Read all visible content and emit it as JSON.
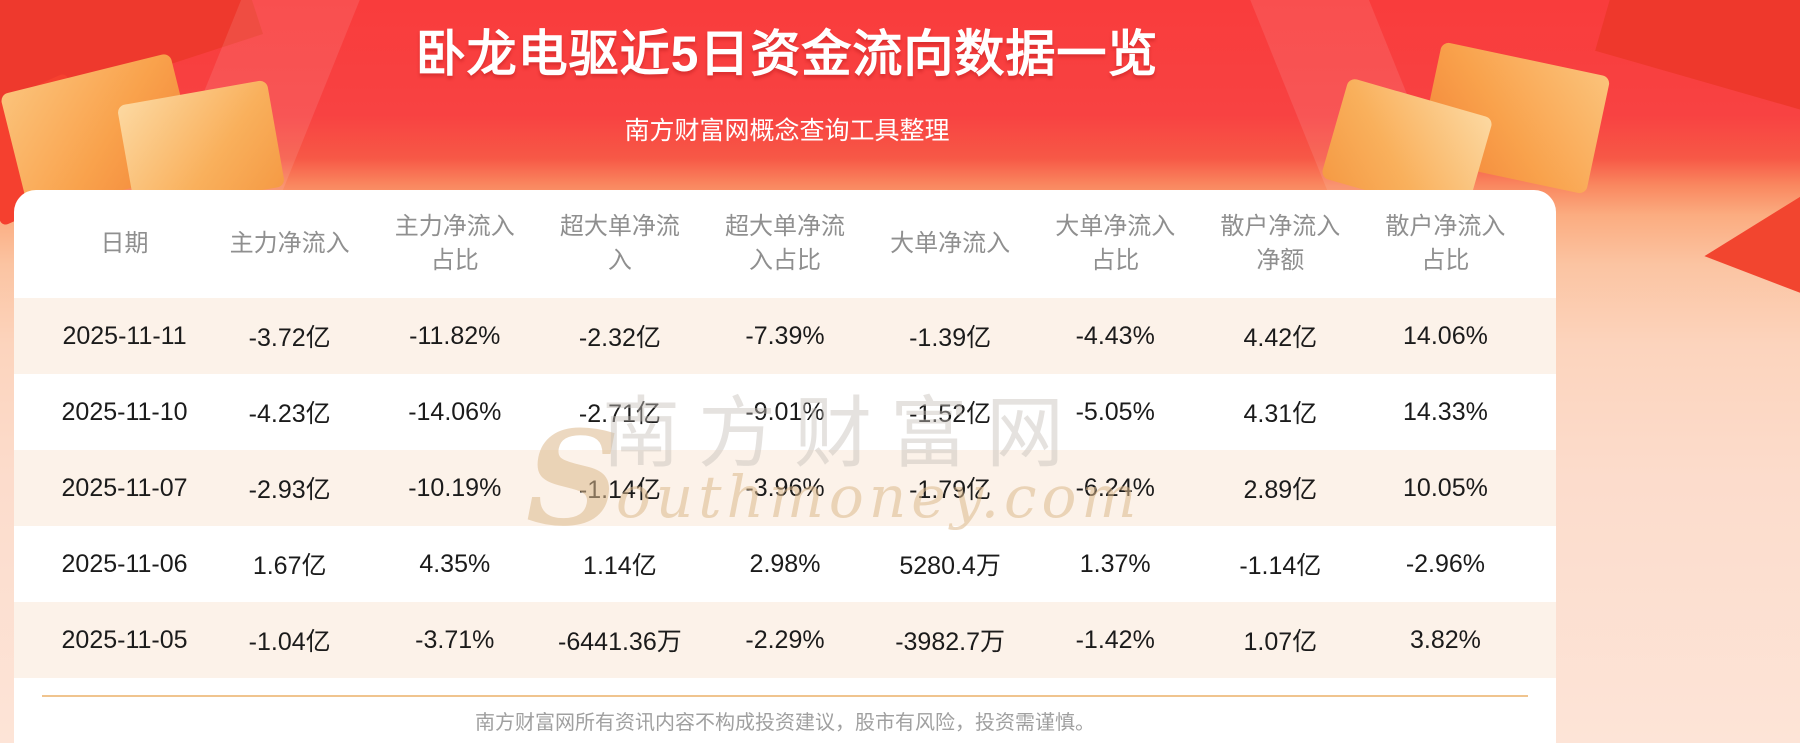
{
  "banner": {
    "title": "卧龙电驱近5日资金流向数据一览",
    "subtitle": "南方财富网概念查询工具整理"
  },
  "chart_data": {
    "type": "table",
    "title": "卧龙电驱近5日资金流向数据一览",
    "columns": [
      "日期",
      "主力净流入",
      "主力净流入占比",
      "超大单净流入",
      "超大单净流入占比",
      "大单净流入",
      "大单净流入占比",
      "散户净流入净额",
      "散户净流入占比"
    ],
    "rows": [
      [
        "2025-11-11",
        "-3.72亿",
        "-11.82%",
        "-2.32亿",
        "-7.39%",
        "-1.39亿",
        "-4.43%",
        "4.42亿",
        "14.06%"
      ],
      [
        "2025-11-10",
        "-4.23亿",
        "-14.06%",
        "-2.71亿",
        "-9.01%",
        "-1.52亿",
        "-5.05%",
        "4.31亿",
        "14.33%"
      ],
      [
        "2025-11-07",
        "-2.93亿",
        "-10.19%",
        "-1.14亿",
        "-3.96%",
        "-1.79亿",
        "-6.24%",
        "2.89亿",
        "10.05%"
      ],
      [
        "2025-11-06",
        "1.67亿",
        "4.35%",
        "1.14亿",
        "2.98%",
        "5280.4万",
        "1.37%",
        "-1.14亿",
        "-2.96%"
      ],
      [
        "2025-11-05",
        "-1.04亿",
        "-3.71%",
        "-6441.36万",
        "-2.29%",
        "-3982.7万",
        "-1.42%",
        "1.07亿",
        "3.82%"
      ]
    ],
    "row_stripe_colors": [
      "#fcf2e9",
      "#ffffff"
    ]
  },
  "watermark": {
    "initial": "S",
    "cn": "南方财富网",
    "en": "outhmoney.com"
  },
  "footer": {
    "disclaimer": "南方财富网所有资讯内容不构成投资建议，股市有风险，投资需谨慎。"
  },
  "colors": {
    "banner_red": "#f93c3c",
    "row_pink": "#fcf2e9",
    "divider_line": "#f0c48e",
    "header_text": "#8f8f8f",
    "cell_text": "#1b1b1b",
    "title_text": "#ffffff"
  }
}
